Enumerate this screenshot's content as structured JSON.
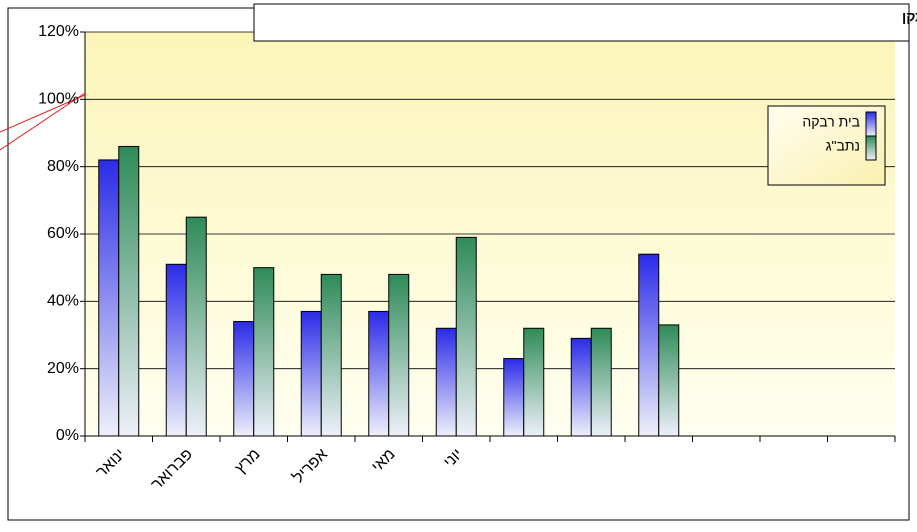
{
  "chart_data": {
    "type": "bar",
    "title": "ריכוזי NOX - ערכים מירביים חצי-שעתיים כאחוזים מהתקן",
    "categories": [
      "ינואר",
      "פברואר",
      "מרץ",
      "אפריל",
      "מאי",
      "יוני",
      null,
      null,
      null,
      null,
      null,
      null
    ],
    "series": [
      {
        "name": "בית רבקה",
        "color": "#2b2be8",
        "values": [
          82,
          51,
          34,
          37,
          37,
          32,
          23,
          29,
          54,
          null,
          null,
          null
        ]
      },
      {
        "name": "נתב\"ג",
        "color": "#2e8b57",
        "values": [
          86,
          65,
          50,
          48,
          48,
          59,
          32,
          32,
          33,
          null,
          null,
          null
        ]
      }
    ],
    "ylim": [
      0,
      120
    ],
    "yticks": [
      {
        "value": 0,
        "label": "0%"
      },
      {
        "value": 20,
        "label": "20%"
      },
      {
        "value": 40,
        "label": "40%"
      },
      {
        "value": 60,
        "label": "60%"
      },
      {
        "value": 80,
        "label": "80%"
      },
      {
        "value": 100,
        "label": "100%"
      },
      {
        "value": 120,
        "label": "120%"
      }
    ],
    "grid": true,
    "legend": "upper right"
  }
}
